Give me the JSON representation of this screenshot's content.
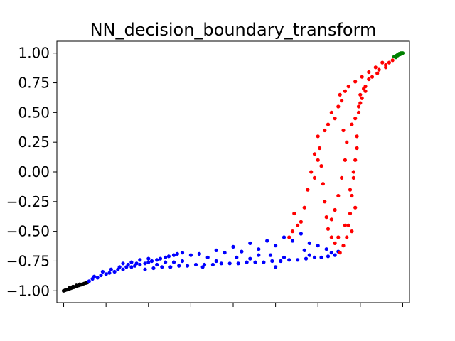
{
  "chart_data": {
    "type": "scatter",
    "title": "NN_decision_boundary_transform",
    "xlabel": "",
    "ylabel": "",
    "xlim": [
      -1.04,
      1.04
    ],
    "ylim": [
      -1.1,
      1.1
    ],
    "x_tick_values": [
      -1.0,
      -0.75,
      -0.5,
      -0.25,
      0.0,
      0.25,
      0.5,
      0.75,
      1.0
    ],
    "x_tick_labels_visible": false,
    "y_tick_values": [
      1.0,
      0.75,
      0.5,
      0.25,
      0.0,
      -0.25,
      -0.5,
      -0.75,
      -1.0
    ],
    "y_tick_labels": [
      "1.00",
      "0.75",
      "0.50",
      "0.25",
      "0.00",
      "−0.25",
      "−0.50",
      "−0.75",
      "−1.00"
    ],
    "grid": false,
    "legend": "none",
    "series": [
      {
        "color": "#000000",
        "marker": "circle",
        "points": [
          [
            -1.0,
            -1.0
          ],
          [
            -0.99,
            -0.995
          ],
          [
            -0.98,
            -0.99
          ],
          [
            -0.97,
            -0.985
          ],
          [
            -0.96,
            -0.98
          ],
          [
            -0.95,
            -0.975
          ],
          [
            -0.94,
            -0.97
          ],
          [
            -0.93,
            -0.965
          ],
          [
            -0.92,
            -0.96
          ],
          [
            -0.91,
            -0.955
          ],
          [
            -0.9,
            -0.95
          ],
          [
            -0.89,
            -0.945
          ],
          [
            -0.88,
            -0.94
          ],
          [
            -0.87,
            -0.935
          ],
          [
            -0.86,
            -0.93
          ],
          [
            -0.985,
            -0.99
          ],
          [
            -0.965,
            -0.975
          ],
          [
            -0.945,
            -0.965
          ],
          [
            -0.925,
            -0.955
          ],
          [
            -0.905,
            -0.945
          ]
        ]
      },
      {
        "color": "#0000ff",
        "marker": "circle",
        "points": [
          [
            -0.85,
            -0.92
          ],
          [
            -0.83,
            -0.9
          ],
          [
            -0.8,
            -0.89
          ],
          [
            -0.78,
            -0.87
          ],
          [
            -0.75,
            -0.86
          ],
          [
            -0.73,
            -0.85
          ],
          [
            -0.7,
            -0.84
          ],
          [
            -0.68,
            -0.82
          ],
          [
            -0.65,
            -0.82
          ],
          [
            -0.63,
            -0.8
          ],
          [
            -0.6,
            -0.8
          ],
          [
            -0.58,
            -0.79
          ],
          [
            -0.55,
            -0.78
          ],
          [
            -0.52,
            -0.77
          ],
          [
            -0.5,
            -0.76
          ],
          [
            -0.48,
            -0.75
          ],
          [
            -0.45,
            -0.74
          ],
          [
            -0.43,
            -0.73
          ],
          [
            -0.4,
            -0.72
          ],
          [
            -0.38,
            -0.71
          ],
          [
            -0.35,
            -0.7
          ],
          [
            -0.33,
            -0.69
          ],
          [
            -0.3,
            -0.68
          ],
          [
            -0.82,
            -0.88
          ],
          [
            -0.77,
            -0.84
          ],
          [
            -0.72,
            -0.82
          ],
          [
            -0.67,
            -0.8
          ],
          [
            -0.62,
            -0.78
          ],
          [
            -0.57,
            -0.77
          ],
          [
            -0.52,
            -0.82
          ],
          [
            -0.47,
            -0.81
          ],
          [
            -0.42,
            -0.8
          ],
          [
            -0.37,
            -0.8
          ],
          [
            -0.32,
            -0.79
          ],
          [
            -0.27,
            -0.79
          ],
          [
            -0.22,
            -0.78
          ],
          [
            -0.17,
            -0.78
          ],
          [
            -0.12,
            -0.78
          ],
          [
            -0.07,
            -0.77
          ],
          [
            -0.02,
            -0.77
          ],
          [
            0.03,
            -0.77
          ],
          [
            0.08,
            -0.76
          ],
          [
            0.13,
            -0.76
          ],
          [
            0.18,
            -0.76
          ],
          [
            0.23,
            -0.75
          ],
          [
            0.28,
            -0.75
          ],
          [
            0.33,
            -0.74
          ],
          [
            0.38,
            -0.74
          ],
          [
            0.43,
            -0.73
          ],
          [
            0.48,
            -0.72
          ],
          [
            0.52,
            -0.72
          ],
          [
            0.56,
            -0.71
          ],
          [
            0.6,
            -0.7
          ],
          [
            -0.25,
            -0.7
          ],
          [
            -0.2,
            -0.69
          ],
          [
            -0.15,
            -0.72
          ],
          [
            -0.1,
            -0.66
          ],
          [
            -0.05,
            -0.68
          ],
          [
            0.0,
            -0.63
          ],
          [
            0.05,
            -0.67
          ],
          [
            0.1,
            -0.6
          ],
          [
            0.15,
            -0.65
          ],
          [
            0.2,
            -0.58
          ],
          [
            0.25,
            -0.62
          ],
          [
            0.3,
            -0.55
          ],
          [
            0.35,
            -0.58
          ],
          [
            0.4,
            -0.52
          ],
          [
            0.45,
            -0.6
          ],
          [
            0.5,
            -0.62
          ],
          [
            0.55,
            -0.65
          ],
          [
            0.58,
            -0.68
          ],
          [
            0.62,
            -0.67
          ],
          [
            -0.6,
            -0.76
          ],
          [
            -0.5,
            -0.73
          ],
          [
            -0.4,
            -0.76
          ],
          [
            -0.3,
            -0.75
          ],
          [
            -0.1,
            -0.75
          ],
          [
            0.1,
            -0.73
          ],
          [
            0.3,
            -0.72
          ],
          [
            0.45,
            -0.7
          ],
          [
            -0.35,
            -0.76
          ],
          [
            -0.18,
            -0.8
          ],
          [
            0.02,
            -0.72
          ],
          [
            0.22,
            -0.7
          ],
          [
            0.42,
            -0.66
          ],
          [
            0.25,
            -0.8
          ],
          [
            0.15,
            -0.7
          ],
          [
            -0.65,
            -0.77
          ],
          [
            -0.55,
            -0.74
          ],
          [
            -0.45,
            -0.78
          ]
        ]
      },
      {
        "color": "#ff0000",
        "marker": "circle",
        "points": [
          [
            0.63,
            -0.68
          ],
          [
            0.65,
            -0.62
          ],
          [
            0.67,
            -0.55
          ],
          [
            0.68,
            -0.45
          ],
          [
            0.69,
            -0.35
          ],
          [
            0.7,
            -0.2
          ],
          [
            0.71,
            -0.05
          ],
          [
            0.72,
            0.1
          ],
          [
            0.73,
            0.3
          ],
          [
            0.74,
            0.5
          ],
          [
            0.75,
            0.65
          ],
          [
            0.78,
            0.72
          ],
          [
            0.82,
            0.8
          ],
          [
            0.86,
            0.86
          ],
          [
            0.9,
            0.9
          ],
          [
            0.94,
            0.94
          ],
          [
            0.6,
            -0.6
          ],
          [
            0.58,
            -0.55
          ],
          [
            0.56,
            -0.48
          ],
          [
            0.55,
            -0.38
          ],
          [
            0.54,
            -0.25
          ],
          [
            0.53,
            -0.1
          ],
          [
            0.52,
            0.05
          ],
          [
            0.51,
            0.2
          ],
          [
            0.5,
            0.3
          ],
          [
            0.48,
            0.15
          ],
          [
            0.46,
            0.0
          ],
          [
            0.44,
            -0.15
          ],
          [
            0.42,
            -0.3
          ],
          [
            0.4,
            -0.42
          ],
          [
            0.36,
            -0.35
          ],
          [
            0.38,
            -0.45
          ],
          [
            0.35,
            -0.5
          ],
          [
            0.33,
            -0.55
          ],
          [
            0.6,
            0.45
          ],
          [
            0.62,
            0.55
          ],
          [
            0.64,
            0.6
          ],
          [
            0.66,
            0.68
          ],
          [
            0.68,
            0.72
          ],
          [
            0.72,
            0.76
          ],
          [
            0.76,
            0.8
          ],
          [
            0.8,
            0.84
          ],
          [
            0.84,
            0.88
          ],
          [
            0.88,
            0.92
          ],
          [
            0.7,
            0.4
          ],
          [
            0.72,
            0.45
          ],
          [
            0.74,
            0.55
          ],
          [
            0.76,
            0.62
          ],
          [
            0.78,
            0.68
          ],
          [
            0.66,
            0.1
          ],
          [
            0.64,
            -0.05
          ],
          [
            0.62,
            -0.2
          ],
          [
            0.6,
            -0.32
          ],
          [
            0.58,
            -0.4
          ],
          [
            0.7,
            -0.5
          ],
          [
            0.72,
            -0.3
          ],
          [
            0.66,
            -0.45
          ],
          [
            0.62,
            -0.55
          ],
          [
            0.58,
            0.5
          ],
          [
            0.56,
            0.4
          ],
          [
            0.54,
            0.35
          ],
          [
            0.5,
            0.1
          ],
          [
            0.48,
            -0.05
          ],
          [
            0.73,
            0.2
          ],
          [
            0.71,
            0.0
          ],
          [
            0.69,
            -0.15
          ],
          [
            0.67,
            0.25
          ],
          [
            0.65,
            0.35
          ],
          [
            0.8,
            0.78
          ],
          [
            0.85,
            0.83
          ],
          [
            0.9,
            0.88
          ],
          [
            0.92,
            0.92
          ],
          [
            0.75,
            0.58
          ],
          [
            0.77,
            0.7
          ],
          [
            0.63,
            0.65
          ]
        ]
      },
      {
        "color": "#008000",
        "marker": "circle",
        "points": [
          [
            0.95,
            0.97
          ],
          [
            0.96,
            0.975
          ],
          [
            0.97,
            0.98
          ],
          [
            0.975,
            0.985
          ],
          [
            0.98,
            0.99
          ],
          [
            0.985,
            0.99
          ],
          [
            0.99,
            0.995
          ],
          [
            0.995,
            0.998
          ],
          [
            1.0,
            1.0
          ],
          [
            0.965,
            0.98
          ],
          [
            0.955,
            0.97
          ],
          [
            0.97,
            0.985
          ],
          [
            0.98,
            0.995
          ],
          [
            0.99,
            1.0
          ],
          [
            0.96,
            0.965
          ]
        ]
      }
    ]
  }
}
